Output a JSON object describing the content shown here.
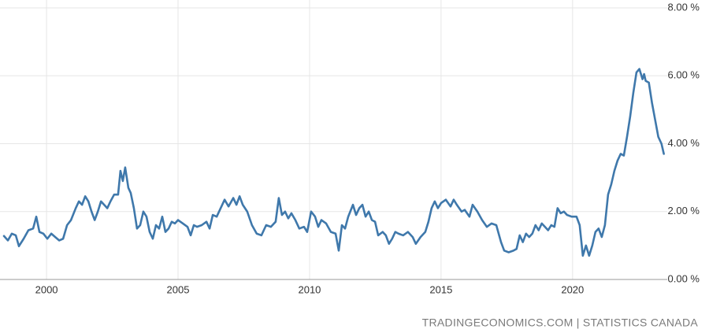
{
  "chart_data": {
    "type": "line",
    "source": "TRADINGECONOMICS.COM | STATISTICS CANADA",
    "xlim": [
      1998.38,
      2023.6
    ],
    "ylim": [
      0,
      8
    ],
    "xticks": [
      2000,
      2005,
      2010,
      2015,
      2020
    ],
    "yticks": [
      {
        "value": 0,
        "label": "0.00 %"
      },
      {
        "value": 2,
        "label": "2.00 %"
      },
      {
        "value": 4,
        "label": "4.00 %"
      },
      {
        "value": 6,
        "label": "6.00 %"
      },
      {
        "value": 8,
        "label": "8.00 %"
      }
    ],
    "grid": true,
    "series": [
      {
        "color": "#3f78ab",
        "x": [
          1998.38,
          1998.53,
          1998.68,
          1998.83,
          1998.95,
          1999.13,
          1999.31,
          1999.49,
          1999.61,
          1999.73,
          1999.88,
          2000.03,
          2000.18,
          2000.33,
          2000.48,
          2000.63,
          2000.78,
          2000.93,
          2001.11,
          2001.23,
          2001.35,
          2001.47,
          2001.59,
          2001.71,
          2001.83,
          2001.95,
          2002.07,
          2002.19,
          2002.31,
          2002.43,
          2002.57,
          2002.72,
          2002.81,
          2002.9,
          2002.99,
          2003.11,
          2003.2,
          2003.32,
          2003.44,
          2003.56,
          2003.68,
          2003.8,
          2003.92,
          2004.04,
          2004.16,
          2004.28,
          2004.4,
          2004.52,
          2004.64,
          2004.76,
          2004.88,
          2005.0,
          2005.18,
          2005.36,
          2005.48,
          2005.6,
          2005.72,
          2005.9,
          2006.08,
          2006.2,
          2006.32,
          2006.47,
          2006.62,
          2006.77,
          2006.92,
          2007.1,
          2007.22,
          2007.34,
          2007.46,
          2007.63,
          2007.81,
          2007.99,
          2008.17,
          2008.35,
          2008.53,
          2008.71,
          2008.83,
          2008.95,
          2009.07,
          2009.19,
          2009.31,
          2009.46,
          2009.61,
          2009.79,
          2009.91,
          2010.06,
          2010.21,
          2010.33,
          2010.45,
          2010.63,
          2010.81,
          2010.99,
          2011.11,
          2011.23,
          2011.35,
          2011.47,
          2011.65,
          2011.77,
          2011.89,
          2012.01,
          2012.13,
          2012.25,
          2012.37,
          2012.49,
          2012.61,
          2012.78,
          2012.9,
          2013.02,
          2013.14,
          2013.26,
          2013.38,
          2013.56,
          2013.74,
          2013.92,
          2014.04,
          2014.22,
          2014.4,
          2014.52,
          2014.64,
          2014.76,
          2014.88,
          2015.0,
          2015.18,
          2015.36,
          2015.48,
          2015.6,
          2015.78,
          2015.9,
          2016.08,
          2016.2,
          2016.38,
          2016.56,
          2016.74,
          2016.92,
          2017.1,
          2017.28,
          2017.4,
          2017.57,
          2017.75,
          2017.87,
          2017.99,
          2018.11,
          2018.23,
          2018.35,
          2018.47,
          2018.59,
          2018.71,
          2018.83,
          2018.95,
          2019.07,
          2019.19,
          2019.31,
          2019.43,
          2019.55,
          2019.67,
          2019.79,
          2019.97,
          2020.15,
          2020.27,
          2020.39,
          2020.51,
          2020.63,
          2020.75,
          2020.87,
          2020.99,
          2021.11,
          2021.23,
          2021.35,
          2021.47,
          2021.59,
          2021.71,
          2021.83,
          2021.95,
          2022.07,
          2022.19,
          2022.31,
          2022.43,
          2022.54,
          2022.66,
          2022.72,
          2022.78,
          2022.9,
          2023.02,
          2023.14,
          2023.26,
          2023.38,
          2023.47
        ],
        "values": [
          1.28,
          1.15,
          1.35,
          1.3,
          0.98,
          1.2,
          1.45,
          1.5,
          1.85,
          1.4,
          1.35,
          1.2,
          1.35,
          1.25,
          1.15,
          1.2,
          1.6,
          1.75,
          2.1,
          2.3,
          2.2,
          2.45,
          2.3,
          2.0,
          1.75,
          2.0,
          2.3,
          2.2,
          2.1,
          2.3,
          2.5,
          2.5,
          3.2,
          2.9,
          3.3,
          2.7,
          2.55,
          2.1,
          1.5,
          1.6,
          2.0,
          1.85,
          1.4,
          1.2,
          1.6,
          1.5,
          1.85,
          1.4,
          1.5,
          1.7,
          1.65,
          1.75,
          1.65,
          1.55,
          1.3,
          1.6,
          1.55,
          1.6,
          1.7,
          1.5,
          1.9,
          1.85,
          2.1,
          2.35,
          2.15,
          2.4,
          2.2,
          2.45,
          2.2,
          2.0,
          1.6,
          1.35,
          1.3,
          1.6,
          1.55,
          1.7,
          2.4,
          1.9,
          2.0,
          1.8,
          1.95,
          1.75,
          1.5,
          1.55,
          1.4,
          2.0,
          1.85,
          1.55,
          1.75,
          1.65,
          1.4,
          1.35,
          0.85,
          1.6,
          1.5,
          1.85,
          2.2,
          1.9,
          2.1,
          2.2,
          1.85,
          2.0,
          1.75,
          1.7,
          1.3,
          1.4,
          1.3,
          1.05,
          1.2,
          1.4,
          1.35,
          1.3,
          1.4,
          1.25,
          1.05,
          1.25,
          1.4,
          1.7,
          2.1,
          2.3,
          2.1,
          2.25,
          2.35,
          2.15,
          2.35,
          2.2,
          2.0,
          2.05,
          1.85,
          2.2,
          2.0,
          1.75,
          1.55,
          1.65,
          1.6,
          1.1,
          0.85,
          0.8,
          0.85,
          0.9,
          1.3,
          1.1,
          1.35,
          1.25,
          1.35,
          1.6,
          1.45,
          1.65,
          1.55,
          1.45,
          1.6,
          1.55,
          2.1,
          1.95,
          2.0,
          1.9,
          1.85,
          1.85,
          1.6,
          0.7,
          1.0,
          0.7,
          1.0,
          1.4,
          1.5,
          1.25,
          1.6,
          2.5,
          2.8,
          3.2,
          3.5,
          3.7,
          3.65,
          4.2,
          4.8,
          5.5,
          6.1,
          6.2,
          5.9,
          6.05,
          5.85,
          5.8,
          5.2,
          4.7,
          4.2,
          4.0,
          3.7
        ]
      }
    ]
  }
}
